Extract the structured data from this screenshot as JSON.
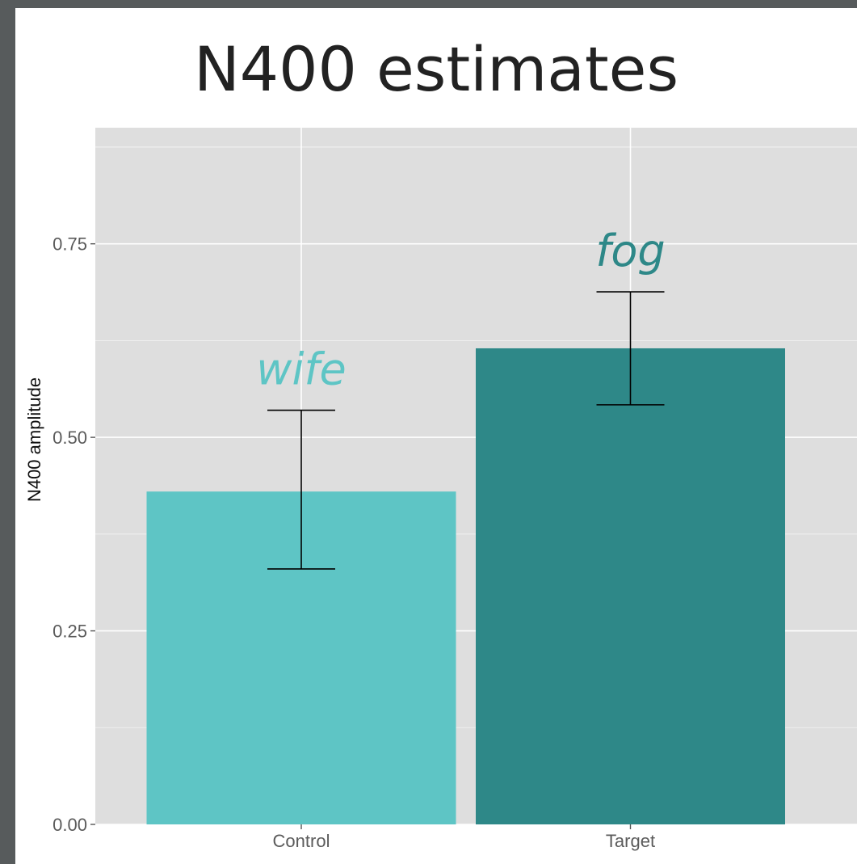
{
  "chart_data": {
    "type": "bar",
    "title": "N400 estimates",
    "xlabel": "",
    "ylabel": "N400 amplitude",
    "categories": [
      "Control",
      "Target"
    ],
    "values": [
      0.43,
      0.615
    ],
    "error_bars": [
      {
        "low": 0.33,
        "high": 0.535
      },
      {
        "low": 0.542,
        "high": 0.688
      }
    ],
    "bar_colors": [
      "#5ec5c5",
      "#2e8888"
    ],
    "annotations": [
      {
        "text": "wife",
        "category": "Control",
        "color": "#5ec5c5"
      },
      {
        "text": "fog",
        "category": "Target",
        "color": "#2e8888"
      }
    ],
    "ylim": [
      0,
      0.9
    ],
    "yticks": [
      0.0,
      0.25,
      0.5,
      0.75
    ],
    "ytick_labels": [
      "0.00",
      "0.25",
      "0.50",
      "0.75"
    ],
    "grid": true,
    "panel_color": "#dedede",
    "grid_color": "#ffffff"
  }
}
